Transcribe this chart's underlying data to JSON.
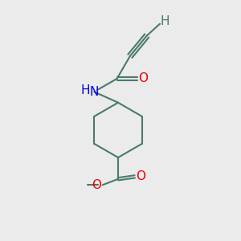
{
  "bg_color": "#ebebeb",
  "bond_color": "#4a7a6a",
  "bond_width": 1.5,
  "atom_colors": {
    "N": "#0000ee",
    "O": "#ee0000",
    "H": "#4a7a6a",
    "C": "#4a7a6a"
  },
  "font_size": 11,
  "fig_size": [
    3.0,
    3.0
  ],
  "dpi": 100,
  "perp": 0.055
}
